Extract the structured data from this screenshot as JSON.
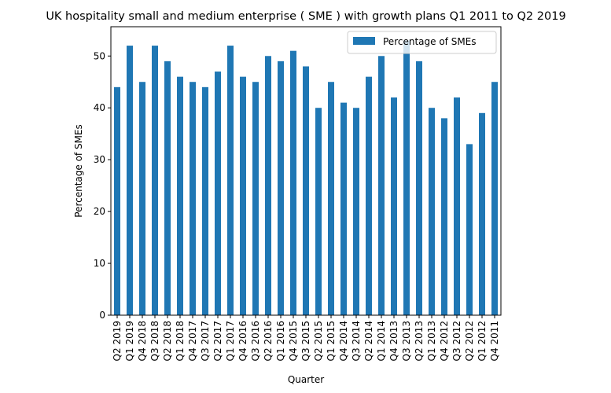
{
  "chart_data": {
    "type": "bar",
    "title": "UK hospitality small and medium enterprise ( SME ) with growth plans Q1 2011 to Q2 2019",
    "xlabel": "Quarter",
    "ylabel": "Percentage of SMEs",
    "ylim": [
      0,
      55.65
    ],
    "yticks": [
      0,
      10,
      20,
      30,
      40,
      50
    ],
    "grid": false,
    "legend_position": "top-right",
    "categories": [
      "Q2 2019",
      "Q1 2019",
      "Q4 2018",
      "Q3 2018",
      "Q2 2018",
      "Q1 2018",
      "Q4 2017",
      "Q3 2017",
      "Q2 2017",
      "Q1 2017",
      "Q4 2016",
      "Q3 2016",
      "Q2 2016",
      "Q1 2016",
      "Q4 2015",
      "Q3 2015",
      "Q2 2015",
      "Q1 2015",
      "Q4 2014",
      "Q3 2014",
      "Q2 2014",
      "Q1 2014",
      "Q4 2013",
      "Q3 2013",
      "Q2 2013",
      "Q1 2013",
      "Q4 2012",
      "Q3 2012",
      "Q2 2012",
      "Q1 2012",
      "Q4 2011"
    ],
    "series": [
      {
        "name": "Percentage of SMEs",
        "color": "#1f77b4",
        "values": [
          44,
          52,
          45,
          52,
          49,
          46,
          45,
          44,
          47,
          52,
          46,
          45,
          50,
          49,
          51,
          48,
          40,
          45,
          41,
          40,
          46,
          50,
          42,
          53,
          49,
          40,
          38,
          42,
          33,
          39,
          45
        ]
      }
    ]
  }
}
